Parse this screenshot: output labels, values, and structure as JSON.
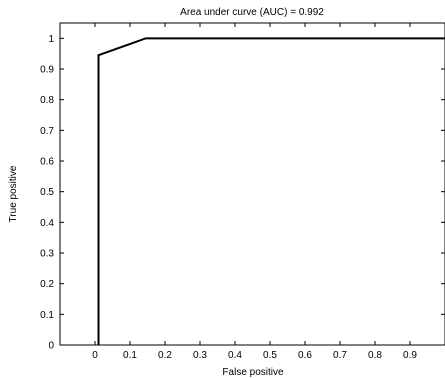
{
  "chart_data": {
    "type": "line",
    "title": "Area under curve (AUC) = 0.992",
    "xlabel": "False positive",
    "ylabel": "True positive",
    "xlim": [
      -0.1,
      1.0
    ],
    "ylim": [
      0,
      1.05
    ],
    "grid": false,
    "legend": "none",
    "x_ticks": [
      0,
      0.1,
      0.2,
      0.3,
      0.4,
      0.5,
      0.6,
      0.7,
      0.8,
      0.9
    ],
    "x_tick_labels": [
      "0",
      "0.1",
      "0.2",
      "0.3",
      "0.4",
      "0.5",
      "0.6",
      "0.7",
      "0.8",
      "0.9"
    ],
    "y_ticks": [
      0,
      0.1,
      0.2,
      0.3,
      0.4,
      0.5,
      0.6,
      0.7,
      0.8,
      0.9,
      1
    ],
    "y_tick_labels": [
      "0",
      "0.1",
      "0.2",
      "0.3",
      "0.4",
      "0.5",
      "0.6",
      "0.7",
      "0.8",
      "0.9",
      "1"
    ],
    "series": [
      {
        "x": [
          0.01,
          0.01,
          0.145,
          1.0
        ],
        "y": [
          0.0,
          0.945,
          1.0,
          1.0
        ],
        "color": "#000000"
      }
    ]
  }
}
